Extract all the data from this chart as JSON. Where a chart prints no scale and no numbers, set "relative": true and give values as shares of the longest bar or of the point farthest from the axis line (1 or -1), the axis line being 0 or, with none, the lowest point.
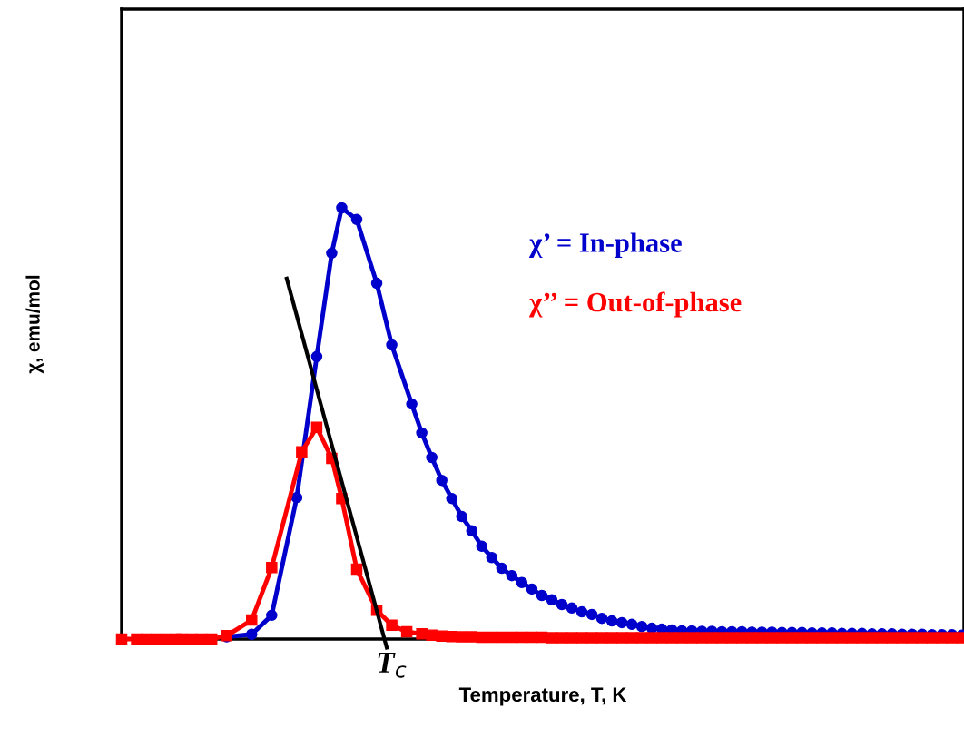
{
  "chart_data": {
    "type": "line",
    "relative": true,
    "xlabel": "Temperature, T, K",
    "ylabel": "χ, emu/mol",
    "legend": false,
    "categories": [
      null,
      null,
      null,
      null,
      null,
      null,
      null,
      null,
      null,
      null,
      null,
      null,
      null,
      null,
      null,
      null,
      null,
      null,
      null,
      null,
      null,
      null,
      null,
      null,
      null,
      null,
      null,
      null,
      null,
      null,
      null,
      null,
      null,
      null,
      null,
      null,
      null,
      null,
      null,
      null,
      null,
      null,
      null,
      null,
      null,
      null,
      null,
      null,
      null,
      null,
      null,
      null,
      null,
      null,
      null,
      null,
      null,
      null,
      null,
      null,
      null,
      null,
      null,
      null,
      null,
      null,
      null,
      null,
      null,
      null,
      null,
      null,
      null,
      null,
      null,
      null,
      null,
      null,
      null,
      null,
      null,
      null,
      null,
      null,
      null,
      null,
      null,
      null,
      null,
      null,
      null,
      null,
      null,
      null,
      null,
      null,
      null,
      null,
      null,
      null,
      null,
      null,
      null,
      null,
      null,
      null,
      null,
      null,
      null,
      null,
      null,
      null,
      null,
      null,
      null,
      null,
      null,
      null,
      null,
      null,
      null,
      null,
      null,
      null,
      null,
      null,
      null,
      null,
      null,
      null,
      null,
      null,
      null,
      null,
      null,
      null,
      null,
      null,
      null,
      null,
      null,
      null,
      null,
      null,
      null,
      null,
      null,
      null,
      null,
      null,
      null,
      null,
      null,
      null,
      null,
      null,
      null,
      null,
      null,
      null,
      null,
      null,
      null,
      null,
      null,
      null,
      null,
      null,
      null
    ],
    "series": [
      {
        "name": "χ’ = In-phase",
        "color": "#0000cc",
        "marker": "circle",
        "values": [
          null,
          null,
          null,
          null,
          null,
          null,
          null,
          null,
          null,
          null,
          null,
          null,
          null,
          null,
          null,
          null,
          null,
          null,
          null,
          null,
          null,
          0.005,
          null,
          null,
          null,
          null,
          0.011,
          null,
          null,
          null,
          0.055,
          null,
          null,
          null,
          null,
          0.328,
          null,
          null,
          null,
          0.655,
          null,
          null,
          0.895,
          null,
          1.0,
          null,
          null,
          0.973,
          null,
          null,
          null,
          0.825,
          null,
          null,
          0.682,
          null,
          null,
          null,
          0.545,
          null,
          0.478,
          null,
          0.421,
          null,
          0.368,
          null,
          0.326,
          null,
          0.284,
          null,
          0.251,
          null,
          0.215,
          null,
          0.189,
          null,
          0.164,
          null,
          0.147,
          null,
          0.131,
          null,
          0.116,
          null,
          0.101,
          null,
          0.091,
          null,
          0.08,
          null,
          0.072,
          null,
          0.063,
          null,
          0.057,
          null,
          0.048,
          null,
          0.042,
          null,
          0.038,
          null,
          0.034,
          null,
          0.029,
          null,
          0.025,
          null,
          0.023,
          null,
          0.021,
          null,
          0.019,
          null,
          0.019,
          null,
          0.018,
          null,
          0.018,
          null,
          0.017,
          null,
          0.017,
          null,
          0.017,
          null,
          0.016,
          null,
          0.016,
          null,
          0.016,
          null,
          0.015,
          null,
          0.015,
          null,
          0.015,
          null,
          0.014,
          null,
          0.014,
          null,
          0.014,
          null,
          0.013,
          null,
          0.013,
          null,
          0.013,
          null,
          0.012,
          null,
          0.012,
          null,
          0.012,
          null,
          0.011,
          null,
          0.011,
          null,
          0.011,
          null,
          0.01,
          null,
          0.01,
          null,
          0.01,
          null,
          0.009
        ]
      },
      {
        "name": "χ’’ = Out-of-phase",
        "color": "#ff0000",
        "marker": "square",
        "values": [
          0.0,
          null,
          null,
          0.0,
          null,
          0.0,
          null,
          0.0,
          null,
          0.0,
          null,
          0.0,
          0.0,
          null,
          0.0,
          null,
          0.0,
          null,
          0.0,
          null,
          null,
          0.008,
          null,
          null,
          null,
          null,
          0.044,
          null,
          null,
          null,
          0.166,
          null,
          null,
          null,
          null,
          null,
          0.434,
          null,
          null,
          0.491,
          null,
          null,
          0.419,
          null,
          0.326,
          null,
          null,
          0.162,
          null,
          null,
          null,
          0.067,
          null,
          null,
          0.032,
          null,
          null,
          0.017,
          null,
          null,
          0.012,
          null,
          0.009,
          null,
          0.007,
          null,
          0.006,
          null,
          0.005,
          null,
          0.005,
          null,
          0.004,
          null,
          0.004,
          null,
          0.004,
          null,
          0.004,
          null,
          0.004,
          null,
          0.004,
          null,
          0.004,
          null,
          0.003,
          null,
          0.003,
          null,
          0.003,
          null,
          0.003,
          null,
          0.003,
          null,
          0.003,
          null,
          0.003,
          null,
          0.003,
          null,
          0.003,
          null,
          0.003,
          null,
          0.003,
          null,
          0.003,
          null,
          0.003,
          null,
          0.003,
          null,
          0.003,
          null,
          0.003,
          null,
          0.003,
          null,
          0.003,
          null,
          0.003,
          null,
          0.003,
          null,
          0.003,
          null,
          0.003,
          null,
          0.003,
          null,
          0.003,
          null,
          0.003,
          null,
          0.003,
          null,
          0.003,
          null,
          0.003,
          null,
          0.003,
          null,
          0.003,
          null,
          0.003,
          null,
          0.003,
          null,
          0.003,
          null,
          0.003,
          null,
          0.003,
          null,
          0.003,
          null,
          0.003,
          null,
          0.003,
          null,
          0.003,
          null,
          0.003,
          null,
          0.003,
          null,
          0.003
        ]
      },
      {
        "type": "line",
        "color": "#000000",
        "marker": "none",
        "values": [
          null,
          null,
          null,
          null,
          null,
          null,
          null,
          null,
          null,
          null,
          null,
          null,
          null,
          null,
          null,
          null,
          null,
          null,
          null,
          null,
          null,
          null,
          null,
          null,
          null,
          null,
          null,
          null,
          null,
          null,
          null,
          null,
          null,
          0.836,
          null,
          null,
          null,
          null,
          null,
          null,
          null,
          null,
          null,
          null,
          null,
          null,
          null,
          null,
          null,
          null,
          null,
          null,
          null,
          -0.02,
          null,
          null,
          null,
          null,
          null,
          null,
          null,
          null,
          null,
          null,
          null,
          null,
          null,
          null,
          null,
          null,
          null,
          null,
          null,
          null,
          null,
          null,
          null,
          null,
          null,
          null,
          null,
          null,
          null,
          null,
          null,
          null,
          null,
          null,
          null,
          null,
          null,
          null,
          null,
          null,
          null,
          null,
          null,
          null,
          null,
          null,
          null,
          null,
          null,
          null,
          null,
          null,
          null,
          null,
          null,
          null,
          null,
          null,
          null,
          null,
          null,
          null,
          null,
          null,
          null,
          null,
          null,
          null,
          null,
          null,
          null,
          null,
          null,
          null,
          null,
          null,
          null,
          null,
          null,
          null,
          null,
          null,
          null,
          null,
          null,
          null,
          null,
          null,
          null,
          null,
          null,
          null,
          null,
          null,
          null,
          null,
          null,
          null,
          null,
          null,
          null,
          null,
          null,
          null,
          null,
          null,
          null,
          null,
          null,
          null,
          null,
          null,
          null,
          null,
          null
        ]
      }
    ],
    "annotations": [
      "T$_{c}$"
    ]
  }
}
